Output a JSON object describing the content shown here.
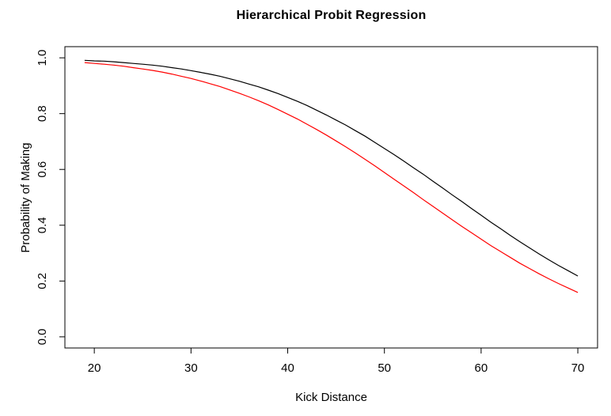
{
  "chart_data": {
    "type": "line",
    "title": "Hierarchical Probit Regression",
    "xlabel": "Kick Distance",
    "ylabel": "Probability of Making",
    "x_tick_values": [
      20,
      30,
      40,
      50,
      60,
      70
    ],
    "x_tick_labels": [
      "20",
      "30",
      "40",
      "50",
      "60",
      "70"
    ],
    "y_tick_values": [
      0.0,
      0.2,
      0.4,
      0.6,
      0.8,
      1.0
    ],
    "y_tick_labels": [
      "0.0",
      "0.2",
      "0.4",
      "0.6",
      "0.8",
      "1.0"
    ],
    "xlim": [
      16.96,
      72.04
    ],
    "ylim": [
      -0.04,
      1.04
    ],
    "grid": false,
    "legend": null,
    "x_start": 19,
    "x_step": 1,
    "series": [
      {
        "name": "upper-probit-curve",
        "color": "#000000",
        "values": [
          0.991,
          0.989,
          0.988,
          0.986,
          0.983,
          0.98,
          0.977,
          0.974,
          0.97,
          0.965,
          0.96,
          0.954,
          0.948,
          0.941,
          0.934,
          0.925,
          0.916,
          0.906,
          0.896,
          0.884,
          0.872,
          0.858,
          0.844,
          0.829,
          0.812,
          0.795,
          0.777,
          0.759,
          0.739,
          0.719,
          0.697,
          0.675,
          0.653,
          0.63,
          0.606,
          0.583,
          0.558,
          0.534,
          0.509,
          0.485,
          0.46,
          0.436,
          0.411,
          0.388,
          0.364,
          0.341,
          0.319,
          0.297,
          0.276,
          0.256,
          0.237,
          0.218
        ]
      },
      {
        "name": "lower-probit-curve",
        "color": "#ff0000",
        "values": [
          0.983,
          0.98,
          0.977,
          0.974,
          0.97,
          0.965,
          0.96,
          0.955,
          0.949,
          0.942,
          0.934,
          0.926,
          0.917,
          0.907,
          0.897,
          0.885,
          0.873,
          0.86,
          0.846,
          0.831,
          0.815,
          0.798,
          0.781,
          0.762,
          0.743,
          0.723,
          0.702,
          0.681,
          0.659,
          0.636,
          0.613,
          0.589,
          0.565,
          0.541,
          0.517,
          0.492,
          0.468,
          0.444,
          0.42,
          0.396,
          0.373,
          0.35,
          0.327,
          0.306,
          0.285,
          0.264,
          0.245,
          0.226,
          0.208,
          0.191,
          0.175,
          0.159
        ]
      }
    ],
    "frame_color": "#000000",
    "background_color": "#ffffff"
  }
}
